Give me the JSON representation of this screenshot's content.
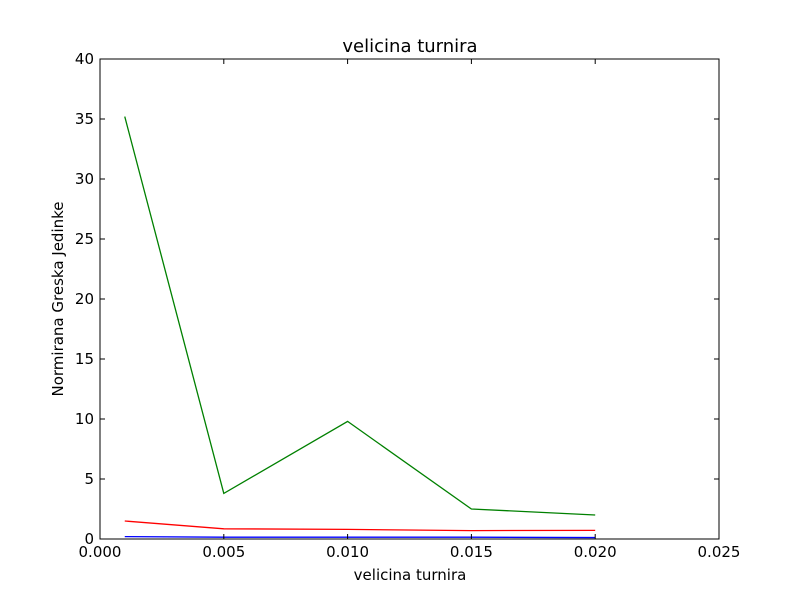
{
  "chart_data": {
    "type": "line",
    "title": "velicina turnira",
    "xlabel": "velicina turnira",
    "ylabel": "Normirana Greska Jedinke",
    "xlim": [
      0.0,
      0.025
    ],
    "ylim": [
      0,
      40
    ],
    "xticks": [
      "0.000",
      "0.005",
      "0.010",
      "0.015",
      "0.020",
      "0.025"
    ],
    "yticks": [
      "0",
      "5",
      "10",
      "15",
      "20",
      "25",
      "30",
      "35",
      "40"
    ],
    "grid": false,
    "x": [
      0.001,
      0.005,
      0.01,
      0.015,
      0.02
    ],
    "series": [
      {
        "color": "#0000ff",
        "values": [
          0.2,
          0.15,
          0.15,
          0.15,
          0.12
        ]
      },
      {
        "color": "#ff0000",
        "values": [
          1.5,
          0.85,
          0.8,
          0.7,
          0.72
        ]
      },
      {
        "color": "#008000",
        "values": [
          35.2,
          3.8,
          9.8,
          2.5,
          2.0
        ]
      }
    ]
  }
}
